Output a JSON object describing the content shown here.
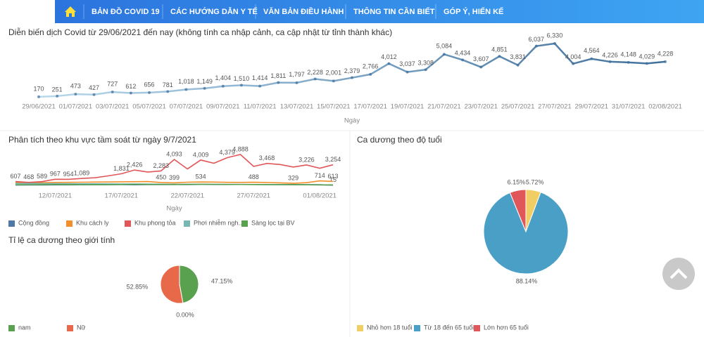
{
  "nav": {
    "items": [
      "BẢN ĐỒ COVID 19",
      "CÁC HƯỚNG DẪN Y TẾ",
      "VĂN BẢN ĐIỀU HÀNH",
      "THÔNG TIN CẦN BIẾT",
      "GÓP Ý, HIẾN KẾ"
    ]
  },
  "chart_data": [
    {
      "type": "line",
      "title": "Diễn biến dịch Covid  từ 29/06/2021 đến nay (không tính ca nhập cảnh, ca cập nhật từ tỉnh thành khác)",
      "x_label": "Ngày",
      "categories": [
        "29/06/2021",
        null,
        "01/07/2021",
        null,
        "03/07/2021",
        null,
        "05/07/2021",
        null,
        "07/07/2021",
        null,
        "09/07/2021",
        null,
        "11/07/2021",
        null,
        "13/07/2021",
        null,
        "15/07/2021",
        null,
        "17/07/2021",
        null,
        "19/07/2021",
        null,
        "21/07/2021",
        null,
        "23/07/2021",
        null,
        "25/07/2021",
        null,
        "27/07/2021",
        null,
        "29/07/2021",
        null,
        "31/07/2021",
        null,
        "02/08/2021"
      ],
      "series": [
        {
          "color": "#3f6f9c",
          "values": [
            170,
            251,
            473,
            427,
            727,
            612,
            656,
            781,
            1018,
            1149,
            1404,
            1510,
            1414,
            1811,
            1797,
            2228,
            2001,
            2379,
            2766,
            4012,
            3037,
            3308,
            5084,
            4434,
            3607,
            4851,
            3831,
            6037,
            6330,
            4004,
            4564,
            4226,
            4148,
            4029,
            4228
          ],
          "value_labels": [
            "170",
            "251",
            "473",
            "427",
            "727",
            "612",
            "656",
            "781",
            "1,018",
            "1,149",
            "1,404",
            "1,510",
            "1,414",
            "1,811",
            "1,797",
            "2,228",
            "2,001",
            "2,379",
            "2,766",
            "4,012",
            "3,037",
            "3,308",
            "5,084",
            "4,434",
            "3,607",
            "4,851",
            "3,831",
            "6,037",
            "6,330",
            "4,004",
            "4,564",
            "4,226",
            "4,148",
            "4,029",
            "4,228"
          ]
        }
      ]
    },
    {
      "type": "line",
      "title": "Phân tích theo khu vực tầm soát từ ngày 9/7/2021",
      "x_label": "Ngày",
      "categories": [
        null,
        null,
        null,
        "12/07/2021",
        null,
        null,
        null,
        null,
        "17/07/2021",
        null,
        null,
        null,
        null,
        "22/07/2021",
        null,
        null,
        null,
        null,
        "27/07/2021",
        null,
        null,
        null,
        null,
        "01/08/2021",
        null
      ],
      "series": [
        {
          "name": "Cộng đồng",
          "color": "#4e79a7",
          "values": [
            50,
            60,
            55,
            70,
            80,
            90,
            85,
            100,
            110,
            95,
            120,
            110,
            130,
            120,
            140,
            125,
            130,
            150,
            140,
            135,
            120,
            130,
            110,
            100,
            15
          ],
          "value_labels": [
            null,
            null,
            null,
            null,
            null,
            null,
            null,
            null,
            null,
            null,
            null,
            null,
            null,
            null,
            null,
            null,
            null,
            null,
            null,
            null,
            null,
            null,
            null,
            null,
            "15"
          ]
        },
        {
          "name": "Khu cách ly",
          "color": "#f28e2b",
          "values": [
            420,
            400,
            430,
            460,
            480,
            500,
            520,
            540,
            560,
            580,
            600,
            450,
            399,
            500,
            534,
            520,
            480,
            470,
            488,
            450,
            400,
            329,
            420,
            714,
            613
          ],
          "value_labels": [
            null,
            null,
            null,
            null,
            null,
            null,
            null,
            null,
            null,
            null,
            null,
            "450",
            "399",
            null,
            "534",
            null,
            null,
            null,
            "488",
            null,
            null,
            "329",
            null,
            "714",
            "613"
          ]
        },
        {
          "name": "Khu phong tỏa",
          "color": "#e15759",
          "values": [
            607,
            468,
            589,
            967,
            954,
            1089,
            1200,
            1500,
            1831,
            2426,
            2100,
            2283,
            4093,
            2600,
            4009,
            3500,
            4379,
            4888,
            3000,
            3468,
            3300,
            2900,
            3226,
            2700,
            3254
          ],
          "value_labels": [
            "607",
            "468",
            "589",
            "967",
            "954",
            "1,089",
            null,
            null,
            "1,831",
            "2,426",
            null,
            "2,283",
            "4,093",
            null,
            "4,009",
            null,
            "4,379",
            "4,888",
            null,
            "3,468",
            null,
            null,
            "3,226",
            null,
            "3,254"
          ]
        },
        {
          "name": "Phơi nhiễm ngh...",
          "color": "#76b7b2",
          "values": [
            300,
            290,
            280,
            270,
            260,
            250,
            240,
            230,
            220,
            210,
            200,
            190,
            180,
            170,
            160,
            150,
            150,
            140,
            130,
            120,
            110,
            100,
            90,
            80,
            70
          ]
        },
        {
          "name": "Sàng lọc tại BV",
          "color": "#59a14f",
          "values": [
            100,
            110,
            120,
            130,
            120,
            110,
            100,
            120,
            140,
            160,
            150,
            140,
            130,
            150,
            170,
            160,
            150,
            140,
            130,
            120,
            110,
            100,
            90,
            80,
            60
          ]
        }
      ]
    },
    {
      "type": "pie",
      "title": "Ca dương theo độ tuổi",
      "categories": [
        "Nhỏ hơn 18 tuổi",
        "Từ 18 đến 65 tuổi",
        "Lớn hơn 65 tuổi"
      ],
      "values": [
        5.72,
        88.14,
        6.15
      ],
      "value_labels": [
        "5.72%",
        "88.14%",
        "6.15%"
      ],
      "colors": [
        "#f1ce63",
        "#4a9fc6",
        "#e15759"
      ]
    },
    {
      "type": "pie",
      "title": "Tỉ lệ ca dương theo giới tính",
      "categories": [
        "nam",
        null,
        "Nữ"
      ],
      "values": [
        47.15,
        0,
        52.85
      ],
      "value_labels": [
        "47.15%",
        "0.00%",
        "52.85%"
      ],
      "colors": [
        "#59a14f",
        "#bab0ac",
        "#e8694a"
      ]
    }
  ]
}
